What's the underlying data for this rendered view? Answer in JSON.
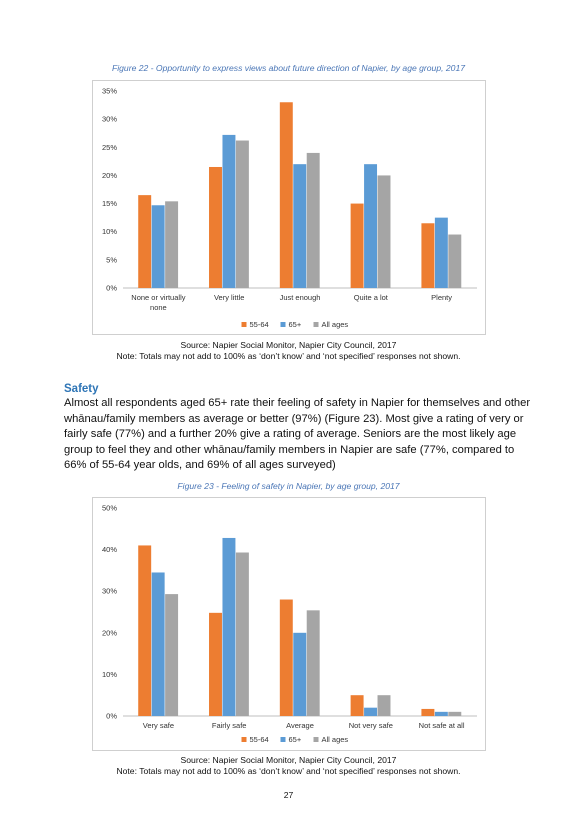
{
  "figure22": {
    "caption": "Figure 22 -  Opportunity to express views about future direction of Napier, by age group, 2017",
    "source": "Source: Napier Social Monitor, Napier City Council, 2017",
    "note": "Note: Totals may not add to 100% as ‘don’t know’ and ‘not specified’ responses not shown."
  },
  "safety": {
    "heading": "Safety",
    "paragraph": "Almost all respondents aged 65+ rate their feeling of safety in Napier for themselves and other whānau/family members as average or better (97%) (Figure 23). Most give a rating of very or fairly safe (77%) and a further 20% give a rating of average. Seniors are the most likely age group to feel they and other whānau/family members in Napier are safe (77%, compared to 66% of 55-64 year olds, and 69% of all ages surveyed)"
  },
  "figure23": {
    "caption": "Figure 23 - Feeling of safety in Napier, by age group, 2017",
    "source": "Source: Napier Social Monitor, Napier City Council, 2017",
    "note": "Note: Totals may not add to 100% as ‘don’t know’ and ‘not specified’ responses not shown."
  },
  "page_number": "27",
  "colors": {
    "s1": "#ed7d31",
    "s2": "#5b9bd5",
    "s3": "#a5a5a5",
    "caption": "#4a76b6",
    "heading": "#2e75b6"
  },
  "chart_data": [
    {
      "type": "bar",
      "categories": [
        [
          "None or virtually",
          "none"
        ],
        [
          "Very little"
        ],
        [
          "Just enough"
        ],
        [
          "Quite a lot"
        ],
        [
          "Plenty"
        ]
      ],
      "series": [
        {
          "name": "55-64",
          "values": [
            16.5,
            21.5,
            33,
            15,
            11.5
          ]
        },
        {
          "name": "65+",
          "values": [
            14.7,
            27.2,
            22,
            22,
            12.5
          ]
        },
        {
          "name": "All ages",
          "values": [
            15.4,
            26.2,
            24,
            20,
            9.5
          ]
        }
      ],
      "ylim": [
        0,
        35
      ],
      "yticks": [
        0,
        5,
        10,
        15,
        20,
        25,
        30,
        35
      ],
      "ytick_labels": [
        "0%",
        "5%",
        "10%",
        "15%",
        "20%",
        "25%",
        "30%",
        "35%"
      ],
      "legend": "bottom",
      "grid": false
    },
    {
      "type": "bar",
      "categories": [
        [
          "Very safe"
        ],
        [
          "Fairly safe"
        ],
        [
          "Average"
        ],
        [
          "Not very safe"
        ],
        [
          "Not safe at all"
        ]
      ],
      "series": [
        {
          "name": "55-64",
          "values": [
            41,
            24.8,
            28,
            5,
            1.7
          ]
        },
        {
          "name": "65+",
          "values": [
            34.5,
            42.8,
            20,
            2,
            1
          ]
        },
        {
          "name": "All ages",
          "values": [
            29.3,
            39.3,
            25.4,
            5,
            1
          ]
        }
      ],
      "ylim": [
        0,
        50
      ],
      "yticks": [
        0,
        10,
        20,
        30,
        40,
        50
      ],
      "ytick_labels": [
        "0%",
        "10%",
        "20%",
        "30%",
        "40%",
        "50%"
      ],
      "legend": "bottom",
      "grid": false
    }
  ]
}
